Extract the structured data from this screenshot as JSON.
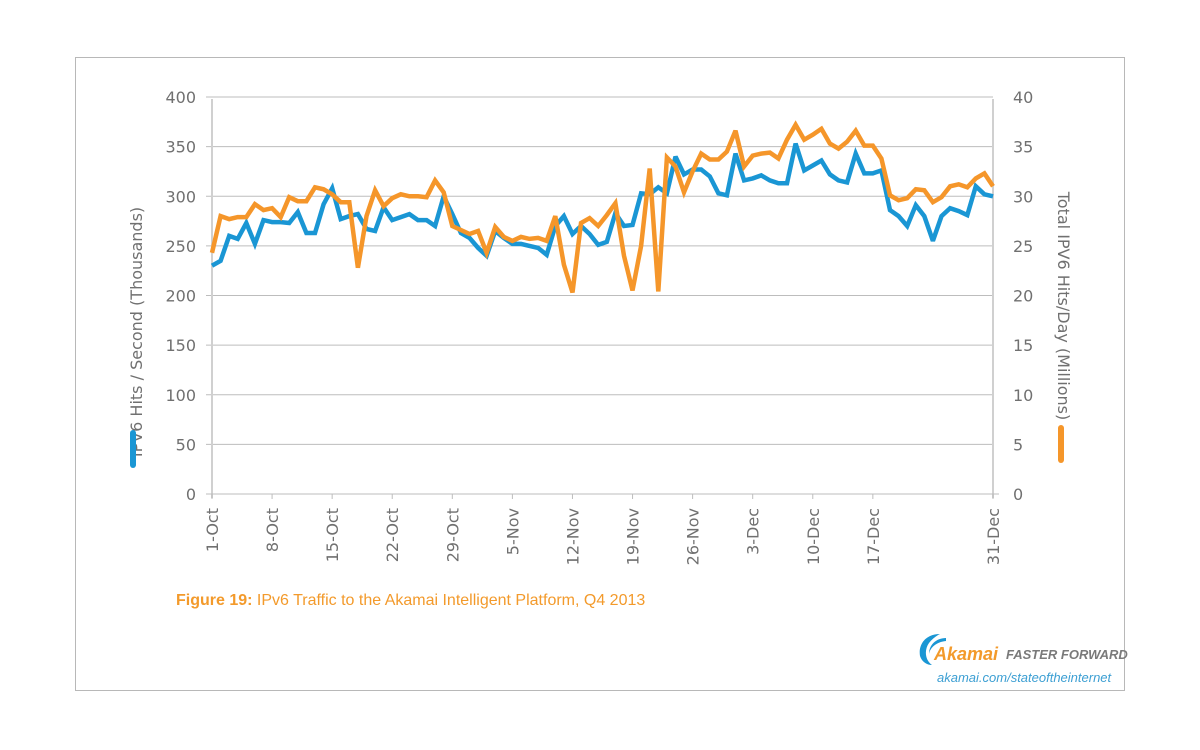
{
  "chart_data": {
    "type": "line",
    "title": "",
    "caption_label": "Figure 19:",
    "caption_text": " IPv6 Traffic to the Akamai Intelligent Platform, Q4 2013",
    "xlabel": "",
    "ylabel_left": "IPV6 Hits / Second (Thousands)",
    "ylabel_right": "Total IPV6 Hits/Day (Millions)",
    "ylim_left": [
      0,
      400
    ],
    "ylim_right": [
      0,
      40
    ],
    "yticks_left": [
      "0",
      "50",
      "100",
      "150",
      "200",
      "250",
      "300",
      "350",
      "400"
    ],
    "yticks_right": [
      "0",
      "5",
      "10",
      "15",
      "20",
      "25",
      "30",
      "35",
      "40"
    ],
    "x_start": "1-Oct",
    "x_days": 92,
    "xtick_labels": [
      {
        "label": "1-Oct",
        "day": 0
      },
      {
        "label": "8-Oct",
        "day": 7
      },
      {
        "label": "15-Oct",
        "day": 14
      },
      {
        "label": "22-Oct",
        "day": 21
      },
      {
        "label": "29-Oct",
        "day": 28
      },
      {
        "label": "5-Nov",
        "day": 35
      },
      {
        "label": "12-Nov",
        "day": 42
      },
      {
        "label": "19-Nov",
        "day": 49
      },
      {
        "label": "26-Nov",
        "day": 56
      },
      {
        "label": "3-Dec",
        "day": 63
      },
      {
        "label": "10-Dec",
        "day": 70
      },
      {
        "label": "17-Dec",
        "day": 77
      },
      {
        "label": "31-Dec",
        "day": 91
      }
    ],
    "grid": true,
    "legend": "axis-title color bars (left: blue, right: orange)",
    "series": [
      {
        "name": "IPV6 Hits / Second (Thousands)",
        "axis": "left",
        "color": "#1a96d4",
        "values": [
          230,
          235,
          260,
          257,
          273,
          252,
          276,
          274,
          274,
          273,
          284,
          263,
          263,
          292,
          308,
          277,
          280,
          282,
          267,
          265,
          289,
          276,
          279,
          282,
          276,
          276,
          270,
          300,
          282,
          263,
          258,
          248,
          240,
          265,
          258,
          252,
          252,
          250,
          248,
          241,
          270,
          280,
          262,
          270,
          262,
          251,
          254,
          283,
          270,
          271,
          303,
          302,
          309,
          303,
          340,
          322,
          327,
          327,
          320,
          303,
          301,
          343,
          316,
          318,
          321,
          316,
          313,
          313,
          353,
          326,
          331,
          336,
          322,
          316,
          314,
          343,
          323,
          323,
          326,
          286,
          280,
          270,
          291,
          280,
          255,
          280,
          288,
          285,
          281,
          310,
          302,
          300
        ]
      },
      {
        "name": "Total IPV6 Hits/Day (Millions)",
        "axis": "right",
        "color": "#f5962a",
        "values": [
          24.3,
          28.0,
          27.7,
          27.9,
          27.9,
          29.2,
          28.6,
          28.8,
          27.9,
          29.9,
          29.5,
          29.5,
          30.9,
          30.7,
          30.2,
          29.4,
          29.4,
          22.8,
          28.0,
          30.6,
          29.0,
          29.8,
          30.2,
          30.0,
          30.0,
          29.9,
          31.6,
          30.4,
          27.0,
          26.6,
          26.2,
          26.5,
          24.3,
          26.9,
          25.9,
          25.5,
          25.9,
          25.7,
          25.8,
          25.5,
          28.0,
          23.1,
          20.3,
          27.3,
          27.8,
          27.0,
          28.1,
          29.3,
          24.0,
          20.5,
          25.0,
          32.8,
          20.4,
          33.9,
          33.0,
          30.4,
          32.5,
          34.3,
          33.7,
          33.7,
          34.5,
          36.6,
          33.0,
          34.1,
          34.3,
          34.4,
          33.8,
          35.7,
          37.2,
          35.7,
          36.2,
          36.8,
          35.3,
          34.8,
          35.5,
          36.6,
          35.1,
          35.1,
          33.8,
          30.1,
          29.6,
          29.8,
          30.7,
          30.6,
          29.4,
          29.9,
          31.0,
          31.2,
          30.9,
          31.8,
          32.3,
          31.0
        ]
      }
    ]
  },
  "branding": {
    "logo_word": "Akamai",
    "tagline": "FASTER FORWARD",
    "url": "akamai.com/stateoftheinternet",
    "orange": "#f39a2b",
    "blue": "#1a96d4"
  }
}
